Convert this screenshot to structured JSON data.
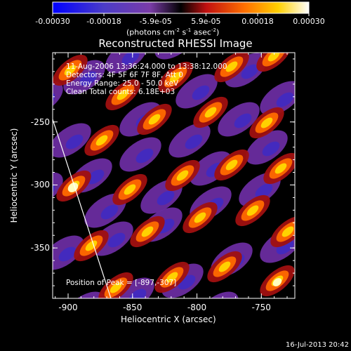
{
  "chart_data": {
    "type": "heatmap",
    "title": "Reconstructed RHESSI Image",
    "xlabel": "Heliocentric X (arcsec)",
    "ylabel": "Heliocentric Y (arcsec)",
    "xlim": [
      -912,
      -724
    ],
    "ylim": [
      -390,
      -195
    ],
    "x_ticks": [
      "-900",
      "-850",
      "-800",
      "-750"
    ],
    "x_tick_values": [
      -900,
      -850,
      -800,
      -750
    ],
    "y_ticks": [
      "-250",
      "-300",
      "-350"
    ],
    "y_tick_values": [
      -250,
      -300,
      -350
    ],
    "colorbar": {
      "ticks": [
        "-0.00030",
        "-0.00018",
        "-5.9e-05",
        "5.9e-05",
        "0.00018",
        "0.00030"
      ],
      "tick_values": [
        -0.0003,
        -0.00018,
        -5.9e-05,
        5.9e-05,
        0.00018,
        0.0003
      ],
      "range": [
        -0.0003,
        0.0003
      ]
    },
    "annotations": [
      "11-Aug-2006 13:36:24.000 to 13:38:12.000",
      "Detectors: 4F 5F 6F 7F 8F, Att 0",
      "Energy Range: 25.0 - 50.0 keV",
      "Clean    Total counts: 6.18E+03"
    ],
    "peak_label": "Position of Peak = [-897,-307]",
    "peak_position": [
      -897,
      -307
    ]
  },
  "colorbar_unit": "(photons cm",
  "colorbar_unit_sup1": "-2",
  "colorbar_unit_mid": " s",
  "colorbar_unit_sup2": "-1",
  "colorbar_unit_end": " asec",
  "colorbar_unit_sup3": "-2",
  "colorbar_unit_close": ")",
  "footer_timestamp": "16-Jul-2013 20:42"
}
